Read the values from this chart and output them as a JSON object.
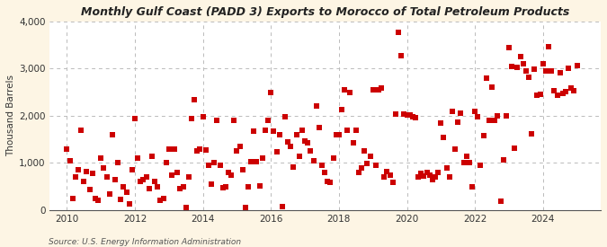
{
  "title": "Monthly Gulf Coast (PADD 3) Exports to Morocco of Total Petroleum Products",
  "ylabel": "Thousand Barrels",
  "source": "Source: U.S. Energy Information Administration",
  "background_color": "#fdf5e4",
  "plot_background_color": "#ffffff",
  "marker_color": "#cc0000",
  "marker_size": 5,
  "ylim": [
    0,
    4000
  ],
  "yticks": [
    0,
    1000,
    2000,
    3000,
    4000
  ],
  "ytick_labels": [
    "0",
    "1,000",
    "2,000",
    "3,000",
    "4,000"
  ],
  "xticks": [
    2010,
    2012,
    2014,
    2016,
    2018,
    2020,
    2022,
    2024
  ],
  "xlim": [
    2009.5,
    2025.7
  ],
  "dates": [
    2010.0,
    2010.083,
    2010.167,
    2010.25,
    2010.333,
    2010.417,
    2010.5,
    2010.583,
    2010.667,
    2010.75,
    2010.833,
    2010.917,
    2011.0,
    2011.083,
    2011.167,
    2011.25,
    2011.333,
    2011.417,
    2011.5,
    2011.583,
    2011.667,
    2011.75,
    2011.833,
    2011.917,
    2012.0,
    2012.083,
    2012.167,
    2012.25,
    2012.333,
    2012.417,
    2012.5,
    2012.583,
    2012.667,
    2012.75,
    2012.833,
    2012.917,
    2013.0,
    2013.083,
    2013.167,
    2013.25,
    2013.333,
    2013.417,
    2013.5,
    2013.583,
    2013.667,
    2013.75,
    2013.833,
    2013.917,
    2014.0,
    2014.083,
    2014.167,
    2014.25,
    2014.333,
    2014.417,
    2014.5,
    2014.583,
    2014.667,
    2014.75,
    2014.833,
    2014.917,
    2015.0,
    2015.083,
    2015.167,
    2015.25,
    2015.333,
    2015.417,
    2015.5,
    2015.583,
    2015.667,
    2015.75,
    2015.833,
    2015.917,
    2016.0,
    2016.083,
    2016.167,
    2016.25,
    2016.333,
    2016.417,
    2016.5,
    2016.583,
    2016.667,
    2016.75,
    2016.833,
    2016.917,
    2017.0,
    2017.083,
    2017.167,
    2017.25,
    2017.333,
    2017.417,
    2017.5,
    2017.583,
    2017.667,
    2017.75,
    2017.833,
    2017.917,
    2018.0,
    2018.083,
    2018.167,
    2018.25,
    2018.333,
    2018.417,
    2018.5,
    2018.583,
    2018.667,
    2018.75,
    2018.833,
    2018.917,
    2019.0,
    2019.083,
    2019.167,
    2019.25,
    2019.333,
    2019.417,
    2019.5,
    2019.583,
    2019.667,
    2019.75,
    2019.833,
    2019.917,
    2020.0,
    2020.083,
    2020.167,
    2020.25,
    2020.333,
    2020.417,
    2020.5,
    2020.583,
    2020.667,
    2020.75,
    2020.833,
    2020.917,
    2021.0,
    2021.083,
    2021.167,
    2021.25,
    2021.333,
    2021.417,
    2021.5,
    2021.583,
    2021.667,
    2021.75,
    2021.833,
    2021.917,
    2022.0,
    2022.083,
    2022.167,
    2022.25,
    2022.333,
    2022.417,
    2022.5,
    2022.583,
    2022.667,
    2022.75,
    2022.833,
    2022.917,
    2023.0,
    2023.083,
    2023.167,
    2023.25,
    2023.333,
    2023.417,
    2023.5,
    2023.583,
    2023.667,
    2023.75,
    2023.833,
    2023.917,
    2024.0,
    2024.083,
    2024.167,
    2024.25,
    2024.333,
    2024.417,
    2024.5,
    2024.583,
    2024.667,
    2024.75,
    2024.833,
    2024.917,
    2025.0
  ],
  "values": [
    1300,
    1050,
    240,
    700,
    850,
    1700,
    600,
    820,
    430,
    780,
    250,
    200,
    1100,
    900,
    700,
    350,
    1600,
    650,
    1000,
    230,
    500,
    380,
    140,
    850,
    1950,
    1100,
    600,
    650,
    700,
    450,
    1150,
    600,
    500,
    200,
    250,
    1000,
    1300,
    750,
    1300,
    800,
    450,
    500,
    60,
    700,
    1950,
    2350,
    1250,
    1300,
    1980,
    1280,
    960,
    550,
    1000,
    1900,
    950,
    480,
    500,
    800,
    750,
    1900,
    1250,
    1350,
    850,
    60,
    500,
    1030,
    1680,
    1020,
    520,
    1100,
    1700,
    1900,
    2500,
    1680,
    1230,
    1600,
    70,
    1980,
    1450,
    1350,
    920,
    1600,
    1150,
    1700,
    1470,
    1430,
    1260,
    1050,
    2200,
    1750,
    960,
    800,
    600,
    580,
    1100,
    1600,
    1600,
    2130,
    2550,
    1700,
    2490,
    1430,
    1700,
    800,
    900,
    1250,
    980,
    1150,
    2560,
    950,
    2550,
    2590,
    700,
    820,
    750,
    590,
    2040,
    3760,
    3280,
    2030,
    2010,
    2020,
    1980,
    1960,
    700,
    780,
    730,
    800,
    750,
    650,
    700,
    800,
    1850,
    1550,
    900,
    700,
    2100,
    1300,
    1870,
    2050,
    1000,
    1150,
    1000,
    500,
    2100,
    1980,
    950,
    1580,
    2790,
    1900,
    2600,
    1900,
    2000,
    180,
    1070,
    2000,
    3450,
    3050,
    1320,
    3020,
    3250,
    3100,
    2950,
    2820,
    1610,
    2990,
    2430,
    2450,
    3100,
    2960,
    3470,
    2960,
    2530,
    2430,
    2920,
    2480,
    2510,
    3010,
    2580,
    2530,
    3060
  ]
}
